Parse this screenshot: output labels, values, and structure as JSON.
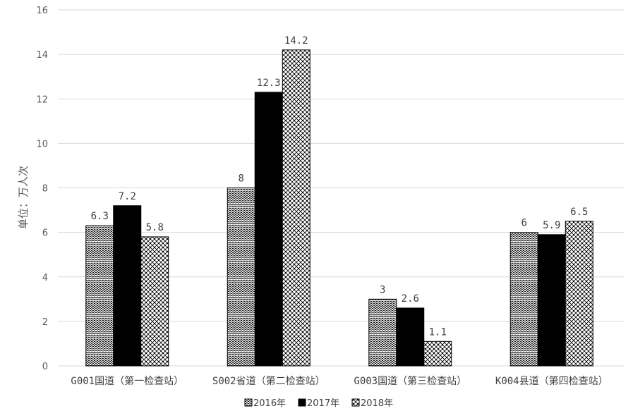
{
  "chart_data": {
    "type": "bar",
    "ylabel": "单位：万人次",
    "ylim": [
      0,
      16
    ],
    "yticks": [
      0,
      2,
      4,
      6,
      8,
      10,
      12,
      14,
      16
    ],
    "grid": true,
    "legend_position": "bottom",
    "categories": [
      "G001国道（第一检查站）",
      "S002省道（第二检查站）",
      "G003国道（第三检查站）",
      "K004县道（第四检查站）"
    ],
    "series": [
      {
        "name": "2016年",
        "values": [
          6.3,
          8,
          3,
          6
        ],
        "labels": [
          "6.3",
          "8",
          "3",
          "6"
        ],
        "pattern": "wave"
      },
      {
        "name": "2017年",
        "values": [
          7.2,
          12.3,
          2.6,
          5.9
        ],
        "labels": [
          "7.2",
          "12.3",
          "2.6",
          "5.9"
        ],
        "pattern": "solid"
      },
      {
        "name": "2018年",
        "values": [
          5.8,
          14.2,
          1.1,
          6.5
        ],
        "labels": [
          "5.8",
          "14.2",
          "1.1",
          "6.5"
        ],
        "pattern": "checker"
      }
    ],
    "colors": {
      "fill_dark": "#000000",
      "grid": "#d9d9d9",
      "bar_outline": "#000000"
    }
  }
}
